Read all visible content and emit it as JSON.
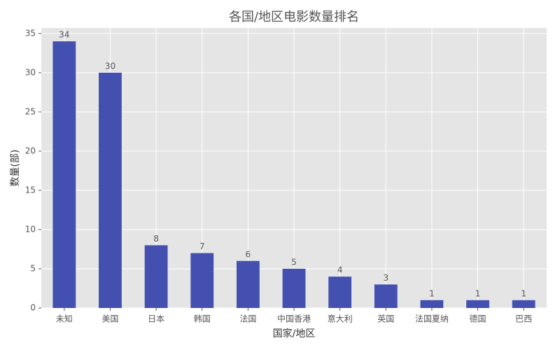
{
  "chart_data": {
    "type": "bar",
    "title": "各国/地区电影数量排名",
    "x_label": "国家/地区",
    "y_label": "数量(部)",
    "categories": [
      "未知",
      "美国",
      "日本",
      "韩国",
      "法国",
      "中国香港",
      "意大利",
      "英国",
      "法国夏纳",
      "德国",
      "巴西"
    ],
    "values": [
      34,
      30,
      8,
      7,
      6,
      5,
      4,
      3,
      1,
      1,
      1
    ],
    "color": "#4450b0",
    "ylim": [
      0,
      35.7
    ],
    "yticks": [
      0,
      5,
      10,
      15,
      20,
      25,
      30,
      35
    ],
    "grid": true
  }
}
